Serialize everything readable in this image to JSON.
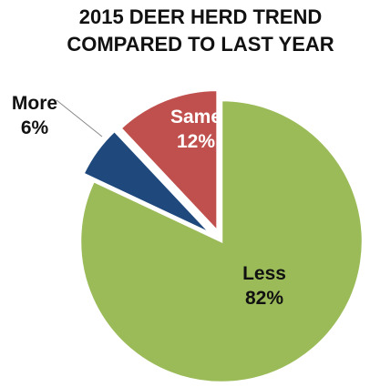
{
  "chart_data": {
    "type": "pie",
    "title_lines": [
      "2015 DEER HERD TREND",
      "COMPARED TO LAST YEAR"
    ],
    "slices": [
      {
        "name": "Less",
        "value": 82,
        "percent_label": "82%",
        "color": "#9BBB59",
        "label_color": "#111111"
      },
      {
        "name": "More",
        "value": 6,
        "percent_label": "6%",
        "color": "#1F497D",
        "label_color": "#111111"
      },
      {
        "name": "Same",
        "value": 12,
        "percent_label": "12%",
        "color": "#C0504D",
        "label_color": "#ffffff"
      }
    ],
    "legend": "none"
  }
}
